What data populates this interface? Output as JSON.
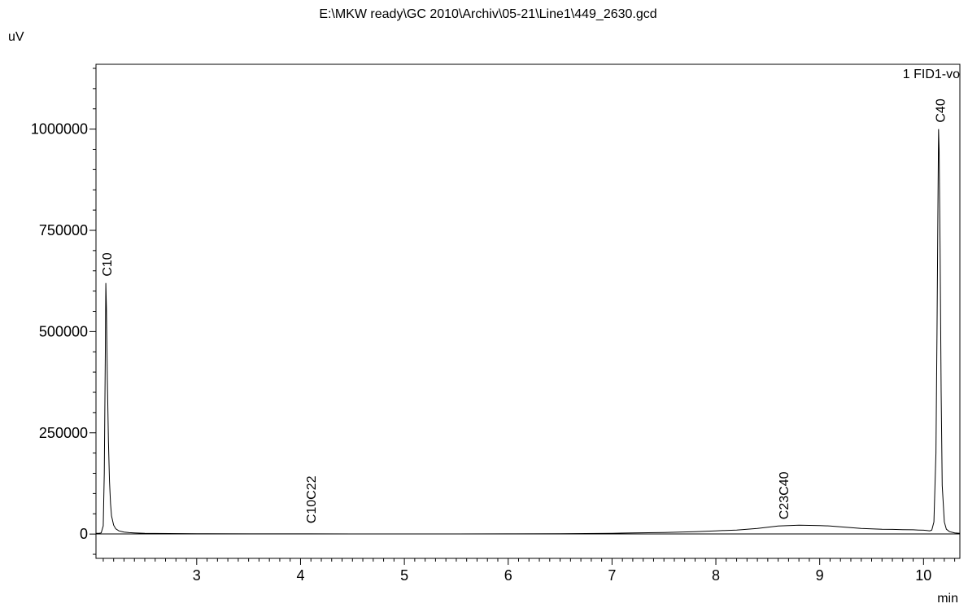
{
  "chart_data": {
    "type": "line",
    "title": "E:\\MKW ready\\GC 2010\\Archiv\\05-21\\Line1\\449_2630.gcd",
    "ylabel": "uV",
    "xlabel": "min",
    "channel_label": "1 FID1-vo",
    "xlim": [
      2.03,
      10.35
    ],
    "ylim": [
      -60000,
      1160000
    ],
    "x_ticks": [
      3,
      4,
      5,
      6,
      7,
      8,
      9,
      10
    ],
    "y_ticks": [
      0,
      250000,
      500000,
      750000,
      1000000
    ],
    "x_tick_labels": [
      "3",
      "4",
      "5",
      "6",
      "7",
      "8",
      "9",
      "10"
    ],
    "y_tick_labels": [
      "0",
      "250000",
      "500000",
      "750000",
      "1000000"
    ],
    "grid": false,
    "series": [
      {
        "x": [
          2.03,
          2.06,
          2.08,
          2.1,
          2.11,
          2.12,
          2.125,
          2.13,
          2.14,
          2.15,
          2.16,
          2.17,
          2.18,
          2.2,
          2.22,
          2.25,
          2.3,
          2.35,
          2.4,
          2.5,
          2.6,
          3.0,
          3.5,
          4.0,
          4.5,
          5.0,
          5.5,
          6.0,
          6.5,
          7.0,
          7.2,
          7.5,
          7.8,
          8.0,
          8.2,
          8.4,
          8.5,
          8.6,
          8.7,
          8.8,
          8.9,
          9.0,
          9.1,
          9.2,
          9.3,
          9.4,
          9.5,
          9.6,
          9.7,
          9.8,
          9.9,
          9.95,
          10.0,
          10.03,
          10.06,
          10.08,
          10.1,
          10.12,
          10.13,
          10.14,
          10.145,
          10.15,
          10.16,
          10.17,
          10.18,
          10.2,
          10.22,
          10.25,
          10.3,
          10.35
        ],
        "y": [
          2000,
          2000,
          3000,
          20000,
          150000,
          450000,
          620000,
          560000,
          380000,
          230000,
          130000,
          75000,
          45000,
          22000,
          13000,
          8000,
          5000,
          3500,
          3000,
          2000,
          1500,
          800,
          500,
          400,
          300,
          200,
          200,
          400,
          800,
          2000,
          2800,
          4000,
          6000,
          8000,
          10000,
          14000,
          17000,
          20000,
          21000,
          22000,
          21500,
          21000,
          20000,
          18000,
          16000,
          14000,
          13000,
          12000,
          11500,
          11000,
          10500,
          10000,
          9500,
          9000,
          8000,
          10000,
          30000,
          200000,
          500000,
          850000,
          1000000,
          950000,
          700000,
          350000,
          120000,
          30000,
          12000,
          6000,
          3000,
          2000
        ]
      }
    ],
    "peaks": [
      {
        "label": "C10",
        "x": 2.13,
        "y": 620000
      },
      {
        "label": "C10C22",
        "x": 4.1,
        "y": 10000
      },
      {
        "label": "C23C40",
        "x": 8.65,
        "y": 20000
      },
      {
        "label": "C40",
        "x": 10.16,
        "y": 1000000
      }
    ]
  }
}
